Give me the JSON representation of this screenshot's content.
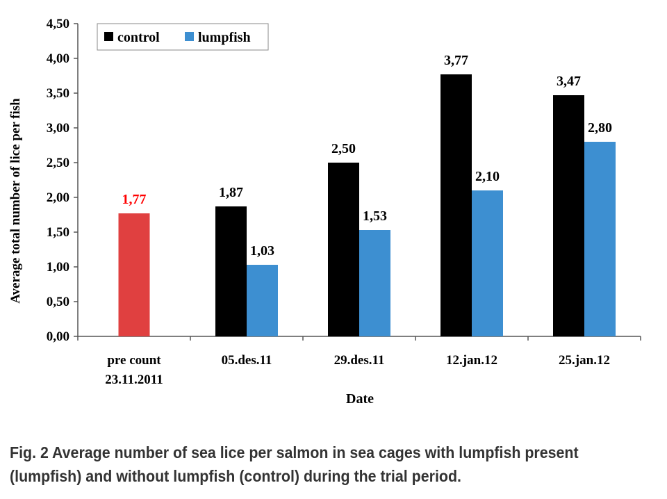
{
  "chart_data": {
    "type": "bar",
    "xlabel": "Date",
    "ylabel": "Average total number of lice per fish",
    "ylim": [
      0,
      4.5
    ],
    "yticks": [
      "0,00",
      "0,50",
      "1,00",
      "1,50",
      "2,00",
      "2,50",
      "3,00",
      "3,50",
      "4,00",
      "4,50"
    ],
    "grid": false,
    "legend_position": "top-left",
    "categories": [
      {
        "line1": "pre count",
        "line2": "23.11.2011"
      },
      {
        "line1": "05.des.11",
        "line2": ""
      },
      {
        "line1": "29.des.11",
        "line2": ""
      },
      {
        "line1": "12.jan.12",
        "line2": ""
      },
      {
        "line1": "25.jan.12",
        "line2": ""
      }
    ],
    "pre_count": {
      "value": 1.77,
      "label": "1,77",
      "color": "#e04040",
      "label_color": "#ff0000"
    },
    "series": [
      {
        "name": "control",
        "color": "#000000",
        "values": [
          null,
          1.87,
          2.5,
          3.77,
          3.47
        ],
        "labels": [
          "",
          "1,87",
          "2,50",
          "3,77",
          "3,47"
        ]
      },
      {
        "name": "lumpfish",
        "color": "#3d8fd1",
        "values": [
          null,
          1.03,
          1.53,
          2.1,
          2.8
        ],
        "labels": [
          "",
          "1,03",
          "1,53",
          "2,10",
          "2,80"
        ]
      }
    ]
  },
  "caption": {
    "line1": "Fig. 2 Average number of sea lice per salmon in sea cages with lumpfish present",
    "line2": "(lumpfish) and without lumpfish (control) during the trial period."
  }
}
